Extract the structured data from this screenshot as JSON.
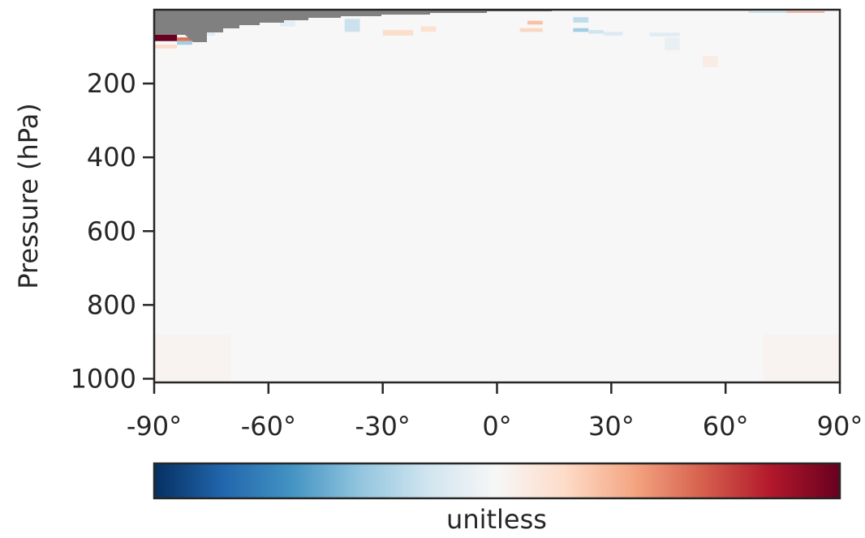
{
  "chart_data": {
    "type": "heatmap",
    "title": "",
    "xlabel": "",
    "ylabel": "Pressure (hPa)",
    "x_ticks": [
      "-90°",
      "-60°",
      "-30°",
      "0°",
      "30°",
      "60°",
      "90°"
    ],
    "x_tick_values": [
      -90,
      -60,
      -30,
      0,
      30,
      60,
      90
    ],
    "xlim": [
      -90,
      90
    ],
    "y_ticks": [
      "200",
      "400",
      "600",
      "800",
      "1000"
    ],
    "y_tick_values": [
      200,
      400,
      600,
      800,
      1000
    ],
    "ylim": [
      1010,
      0
    ],
    "colormap": "RdBu_r",
    "colorbar_label": "unitless",
    "missing_color": "#808080",
    "background_color": "#f7f7f7",
    "grid": false,
    "missing_region": "stratosphere above topmost valid level (values undefined)",
    "cells": [
      {
        "lat": [
          -90,
          -84
        ],
        "p": [
          65,
          85
        ],
        "v": 1.0
      },
      {
        "lat": [
          -84,
          -80
        ],
        "p": [
          75,
          85
        ],
        "v": 0.55
      },
      {
        "lat": [
          -84,
          -80
        ],
        "p": [
          85,
          95
        ],
        "v": -0.35
      },
      {
        "lat": [
          -90,
          -84
        ],
        "p": [
          95,
          105
        ],
        "v": 0.2
      },
      {
        "lat": [
          -78,
          -74
        ],
        "p": [
          55,
          70
        ],
        "v": -0.12
      },
      {
        "lat": [
          -57,
          -53
        ],
        "p": [
          30,
          45
        ],
        "v": -0.1
      },
      {
        "lat": [
          -40,
          -36
        ],
        "p": [
          25,
          60
        ],
        "v": -0.22
      },
      {
        "lat": [
          -30,
          -22
        ],
        "p": [
          55,
          70
        ],
        "v": 0.18
      },
      {
        "lat": [
          -20,
          -16
        ],
        "p": [
          45,
          60
        ],
        "v": 0.15
      },
      {
        "lat": [
          8,
          12
        ],
        "p": [
          30,
          40
        ],
        "v": 0.3
      },
      {
        "lat": [
          6,
          12
        ],
        "p": [
          50,
          60
        ],
        "v": 0.22
      },
      {
        "lat": [
          20,
          24
        ],
        "p": [
          20,
          35
        ],
        "v": -0.25
      },
      {
        "lat": [
          20,
          24
        ],
        "p": [
          50,
          60
        ],
        "v": -0.35
      },
      {
        "lat": [
          24,
          28
        ],
        "p": [
          55,
          65
        ],
        "v": -0.2
      },
      {
        "lat": [
          28,
          33
        ],
        "p": [
          60,
          70
        ],
        "v": -0.15
      },
      {
        "lat": [
          40,
          48
        ],
        "p": [
          62,
          72
        ],
        "v": -0.12
      },
      {
        "lat": [
          44,
          48
        ],
        "p": [
          75,
          110
        ],
        "v": -0.08
      },
      {
        "lat": [
          54,
          58
        ],
        "p": [
          125,
          155
        ],
        "v": 0.08
      },
      {
        "lat": [
          66,
          76
        ],
        "p": [
          5,
          8
        ],
        "v": -0.3
      },
      {
        "lat": [
          76,
          86
        ],
        "p": [
          5,
          8
        ],
        "v": 0.45
      },
      {
        "lat": [
          -90,
          -70
        ],
        "p": [
          880,
          1010
        ],
        "v": 0.03
      },
      {
        "lat": [
          70,
          90
        ],
        "p": [
          880,
          1010
        ],
        "v": 0.03
      }
    ]
  }
}
